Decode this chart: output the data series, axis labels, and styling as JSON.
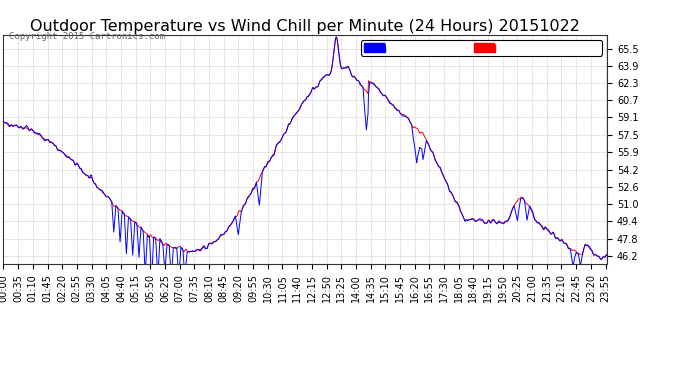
{
  "title": "Outdoor Temperature vs Wind Chill per Minute (24 Hours) 20151022",
  "copyright": "Copyright 2015 Cartronics.com",
  "background_color": "#ffffff",
  "plot_bg_color": "#ffffff",
  "grid_color": "#bbbbbb",
  "temp_color": "#ff0000",
  "wind_color": "#0000ff",
  "ylim_min": 45.4,
  "ylim_max": 66.8,
  "yticks": [
    46.2,
    47.8,
    49.4,
    51.0,
    52.6,
    54.2,
    55.9,
    57.5,
    59.1,
    60.7,
    62.3,
    63.9,
    65.5
  ],
  "title_fontsize": 11.5,
  "tick_fontsize": 7,
  "legend_fontsize": 7.5
}
